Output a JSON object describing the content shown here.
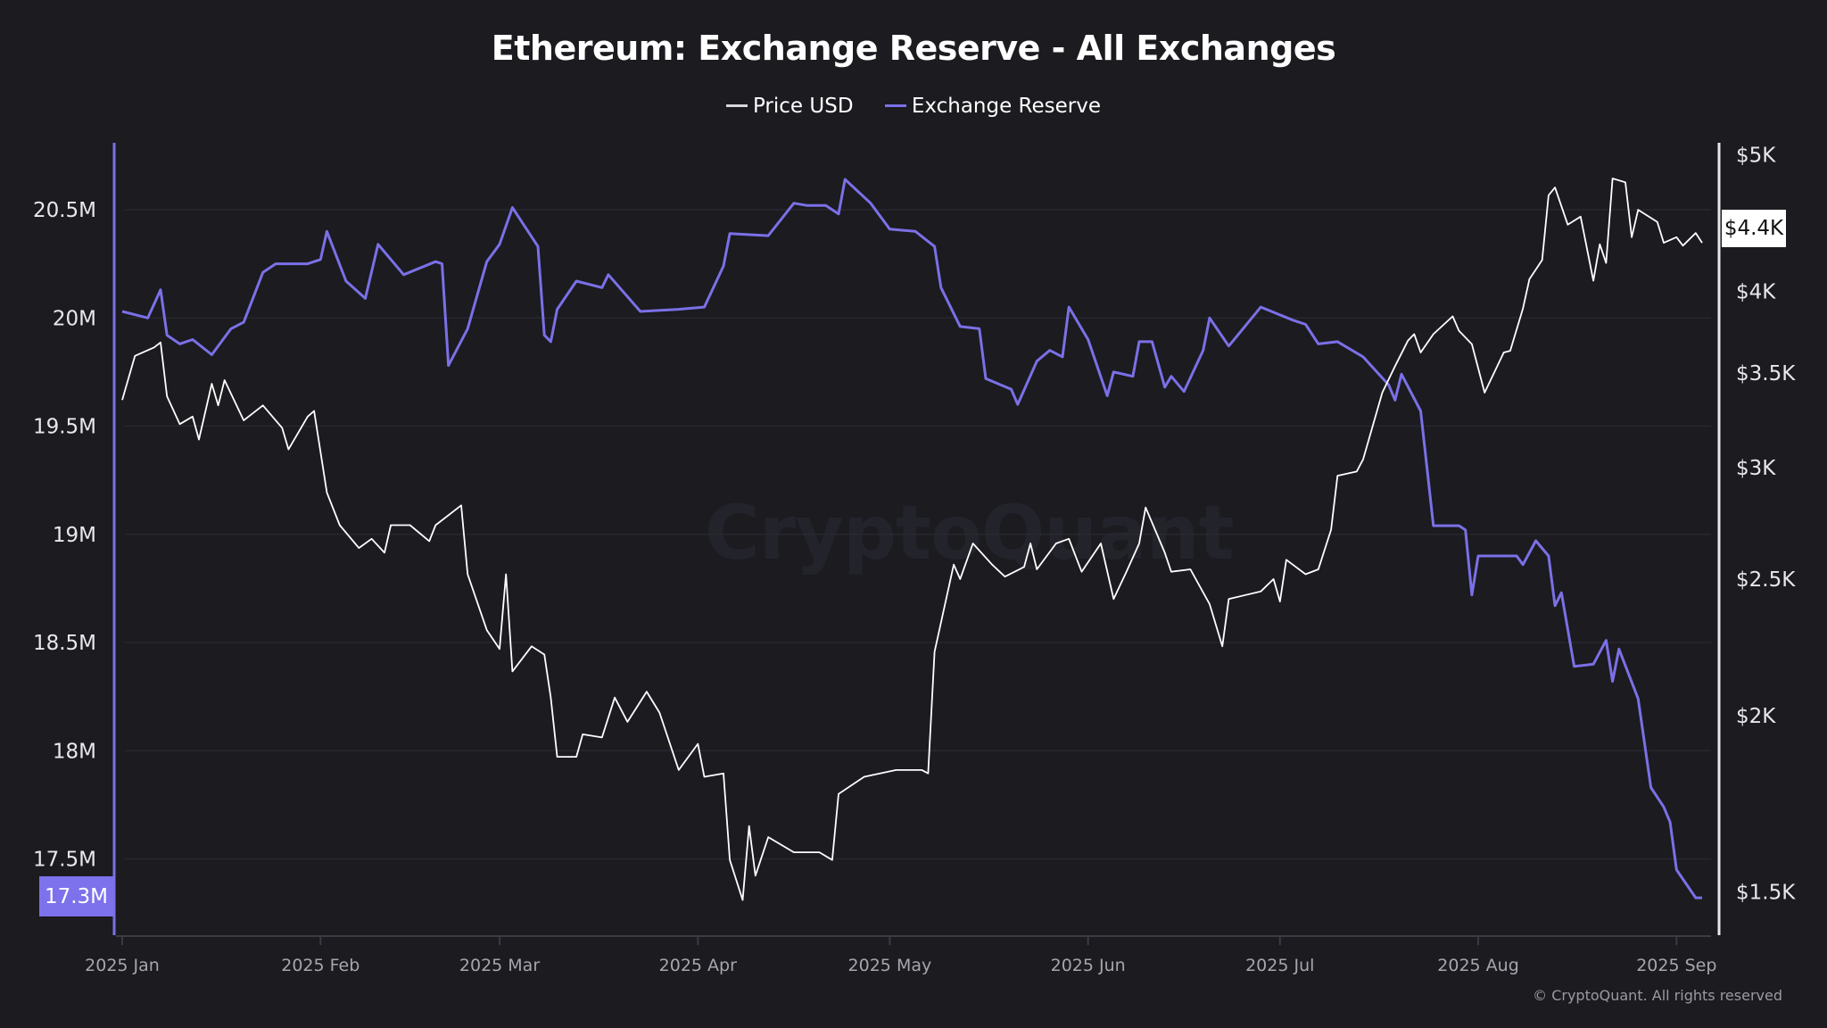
{
  "chart_data": {
    "type": "line",
    "title": "Ethereum: Exchange Reserve - All Exchanges",
    "x_unit": "days since 2025-01-01",
    "x_ticks": [
      "2025 Jan",
      "2025 Feb",
      "2025 Mar",
      "2025 Apr",
      "2025 May",
      "2025 Jun",
      "2025 Jul",
      "2025 Aug",
      "2025 Sep"
    ],
    "x_tick_days": [
      0,
      31,
      59,
      90,
      120,
      151,
      181,
      212,
      243
    ],
    "legend": [
      "Price USD",
      "Exchange Reserve"
    ],
    "legend_position": "top-center",
    "left_axis": {
      "label": "Exchange Reserve",
      "ticks": [
        "20.5M",
        "20M",
        "19.5M",
        "19M",
        "18.5M",
        "18M",
        "17.5M"
      ],
      "tick_values": [
        20.5,
        20,
        19.5,
        19,
        18.5,
        18,
        17.5
      ],
      "unit": "M ETH",
      "range": [
        17.15,
        20.82
      ]
    },
    "right_axis": {
      "label": "Price USD",
      "scale": "log",
      "ticks": [
        "$5K",
        "$4K",
        "$3.5K",
        "$3K",
        "$2.5K",
        "$2K",
        "$1.5K"
      ],
      "tick_values": [
        5000,
        4000,
        3500,
        3000,
        2500,
        2000,
        1500
      ]
    },
    "current_reserve_label": "17.3M",
    "current_price_label": "$4.4K",
    "series": [
      {
        "name": "Exchange Reserve",
        "axis": "left",
        "color": "#7b70e6",
        "points": [
          [
            0,
            20.03
          ],
          [
            4,
            20.0
          ],
          [
            6,
            20.13
          ],
          [
            7,
            19.92
          ],
          [
            9,
            19.88
          ],
          [
            11,
            19.9
          ],
          [
            14,
            19.83
          ],
          [
            17,
            19.95
          ],
          [
            19,
            19.98
          ],
          [
            22,
            20.21
          ],
          [
            24,
            20.25
          ],
          [
            29,
            20.25
          ],
          [
            31,
            20.27
          ],
          [
            32,
            20.4
          ],
          [
            35,
            20.17
          ],
          [
            38,
            20.09
          ],
          [
            40,
            20.34
          ],
          [
            44,
            20.2
          ],
          [
            49,
            20.26
          ],
          [
            50,
            20.25
          ],
          [
            51,
            19.78
          ],
          [
            54,
            19.95
          ],
          [
            57,
            20.26
          ],
          [
            59,
            20.34
          ],
          [
            61,
            20.51
          ],
          [
            63,
            20.42
          ],
          [
            65,
            20.33
          ],
          [
            66,
            19.92
          ],
          [
            67,
            19.89
          ],
          [
            68,
            20.04
          ],
          [
            71,
            20.17
          ],
          [
            75,
            20.14
          ],
          [
            76,
            20.2
          ],
          [
            81,
            20.03
          ],
          [
            87,
            20.04
          ],
          [
            91,
            20.05
          ],
          [
            94,
            20.24
          ],
          [
            95,
            20.39
          ],
          [
            101,
            20.38
          ],
          [
            105,
            20.53
          ],
          [
            107,
            20.52
          ],
          [
            110,
            20.52
          ],
          [
            112,
            20.48
          ],
          [
            113,
            20.64
          ],
          [
            117,
            20.53
          ],
          [
            120,
            20.41
          ],
          [
            124,
            20.4
          ],
          [
            127,
            20.33
          ],
          [
            128,
            20.14
          ],
          [
            131,
            19.96
          ],
          [
            134,
            19.95
          ],
          [
            135,
            19.72
          ],
          [
            139,
            19.67
          ],
          [
            140,
            19.6
          ],
          [
            143,
            19.8
          ],
          [
            145,
            19.85
          ],
          [
            147,
            19.82
          ],
          [
            148,
            20.05
          ],
          [
            151,
            19.9
          ],
          [
            154,
            19.64
          ],
          [
            155,
            19.75
          ],
          [
            158,
            19.73
          ],
          [
            159,
            19.89
          ],
          [
            161,
            19.89
          ],
          [
            163,
            19.68
          ],
          [
            164,
            19.73
          ],
          [
            166,
            19.66
          ],
          [
            169,
            19.85
          ],
          [
            170,
            20.0
          ],
          [
            173,
            19.87
          ],
          [
            178,
            20.05
          ],
          [
            183,
            19.99
          ],
          [
            185,
            19.97
          ],
          [
            187,
            19.88
          ],
          [
            190,
            19.89
          ],
          [
            194,
            19.82
          ],
          [
            198,
            19.69
          ],
          [
            199,
            19.62
          ],
          [
            200,
            19.74
          ],
          [
            203,
            19.57
          ],
          [
            205,
            19.04
          ],
          [
            209,
            19.04
          ],
          [
            210,
            19.02
          ],
          [
            211,
            18.72
          ],
          [
            212,
            18.9
          ],
          [
            218,
            18.9
          ],
          [
            219,
            18.86
          ],
          [
            221,
            18.97
          ],
          [
            223,
            18.9
          ],
          [
            224,
            18.67
          ],
          [
            225,
            18.73
          ],
          [
            227,
            18.39
          ],
          [
            230,
            18.4
          ],
          [
            232,
            18.51
          ],
          [
            233,
            18.32
          ],
          [
            234,
            18.47
          ],
          [
            237,
            18.24
          ],
          [
            239,
            17.83
          ],
          [
            241,
            17.74
          ],
          [
            242,
            17.67
          ],
          [
            243,
            17.45
          ],
          [
            246,
            17.32
          ],
          [
            247,
            17.32
          ]
        ]
      },
      {
        "name": "Price USD",
        "axis": "right",
        "color": "#ffffff",
        "points": [
          [
            0,
            3350
          ],
          [
            2,
            3600
          ],
          [
            5,
            3650
          ],
          [
            6,
            3680
          ],
          [
            7,
            3370
          ],
          [
            9,
            3220
          ],
          [
            11,
            3260
          ],
          [
            12,
            3140
          ],
          [
            14,
            3440
          ],
          [
            15,
            3320
          ],
          [
            16,
            3460
          ],
          [
            19,
            3240
          ],
          [
            22,
            3320
          ],
          [
            25,
            3200
          ],
          [
            26,
            3090
          ],
          [
            29,
            3260
          ],
          [
            30,
            3290
          ],
          [
            32,
            2880
          ],
          [
            34,
            2730
          ],
          [
            37,
            2630
          ],
          [
            39,
            2670
          ],
          [
            41,
            2610
          ],
          [
            42,
            2730
          ],
          [
            45,
            2730
          ],
          [
            48,
            2660
          ],
          [
            49,
            2730
          ],
          [
            53,
            2820
          ],
          [
            54,
            2520
          ],
          [
            57,
            2300
          ],
          [
            59,
            2230
          ],
          [
            60,
            2520
          ],
          [
            61,
            2150
          ],
          [
            64,
            2240
          ],
          [
            66,
            2210
          ],
          [
            67,
            2060
          ],
          [
            68,
            1870
          ],
          [
            71,
            1870
          ],
          [
            72,
            1940
          ],
          [
            75,
            1930
          ],
          [
            77,
            2060
          ],
          [
            79,
            1980
          ],
          [
            82,
            2080
          ],
          [
            84,
            2010
          ],
          [
            87,
            1830
          ],
          [
            90,
            1910
          ],
          [
            91,
            1810
          ],
          [
            94,
            1820
          ],
          [
            95,
            1580
          ],
          [
            97,
            1480
          ],
          [
            98,
            1670
          ],
          [
            99,
            1540
          ],
          [
            101,
            1640
          ],
          [
            105,
            1600
          ],
          [
            109,
            1600
          ],
          [
            111,
            1580
          ],
          [
            112,
            1760
          ],
          [
            116,
            1810
          ],
          [
            121,
            1830
          ],
          [
            125,
            1830
          ],
          [
            126,
            1820
          ],
          [
            127,
            2220
          ],
          [
            130,
            2560
          ],
          [
            131,
            2500
          ],
          [
            133,
            2650
          ],
          [
            136,
            2560
          ],
          [
            138,
            2510
          ],
          [
            141,
            2550
          ],
          [
            142,
            2650
          ],
          [
            143,
            2540
          ],
          [
            146,
            2650
          ],
          [
            148,
            2670
          ],
          [
            150,
            2530
          ],
          [
            153,
            2650
          ],
          [
            155,
            2420
          ],
          [
            157,
            2530
          ],
          [
            159,
            2650
          ],
          [
            160,
            2810
          ],
          [
            163,
            2610
          ],
          [
            164,
            2530
          ],
          [
            167,
            2540
          ],
          [
            170,
            2400
          ],
          [
            172,
            2240
          ],
          [
            173,
            2420
          ],
          [
            178,
            2450
          ],
          [
            180,
            2500
          ],
          [
            181,
            2410
          ],
          [
            182,
            2580
          ],
          [
            185,
            2520
          ],
          [
            187,
            2540
          ],
          [
            189,
            2710
          ],
          [
            190,
            2960
          ],
          [
            193,
            2980
          ],
          [
            194,
            3040
          ],
          [
            197,
            3390
          ],
          [
            199,
            3540
          ],
          [
            201,
            3690
          ],
          [
            202,
            3730
          ],
          [
            203,
            3620
          ],
          [
            205,
            3730
          ],
          [
            208,
            3840
          ],
          [
            209,
            3750
          ],
          [
            211,
            3670
          ],
          [
            213,
            3390
          ],
          [
            216,
            3620
          ],
          [
            217,
            3630
          ],
          [
            219,
            3890
          ],
          [
            220,
            4080
          ],
          [
            222,
            4210
          ],
          [
            223,
            4680
          ],
          [
            224,
            4740
          ],
          [
            226,
            4460
          ],
          [
            228,
            4520
          ],
          [
            230,
            4070
          ],
          [
            231,
            4320
          ],
          [
            232,
            4190
          ],
          [
            233,
            4810
          ],
          [
            235,
            4780
          ],
          [
            236,
            4370
          ],
          [
            237,
            4570
          ],
          [
            240,
            4480
          ],
          [
            241,
            4330
          ],
          [
            243,
            4370
          ],
          [
            244,
            4310
          ],
          [
            246,
            4400
          ],
          [
            247,
            4330
          ]
        ]
      }
    ],
    "grid": true
  },
  "watermark": "CryptoQuant",
  "copyright": "© CryptoQuant. All rights reserved"
}
